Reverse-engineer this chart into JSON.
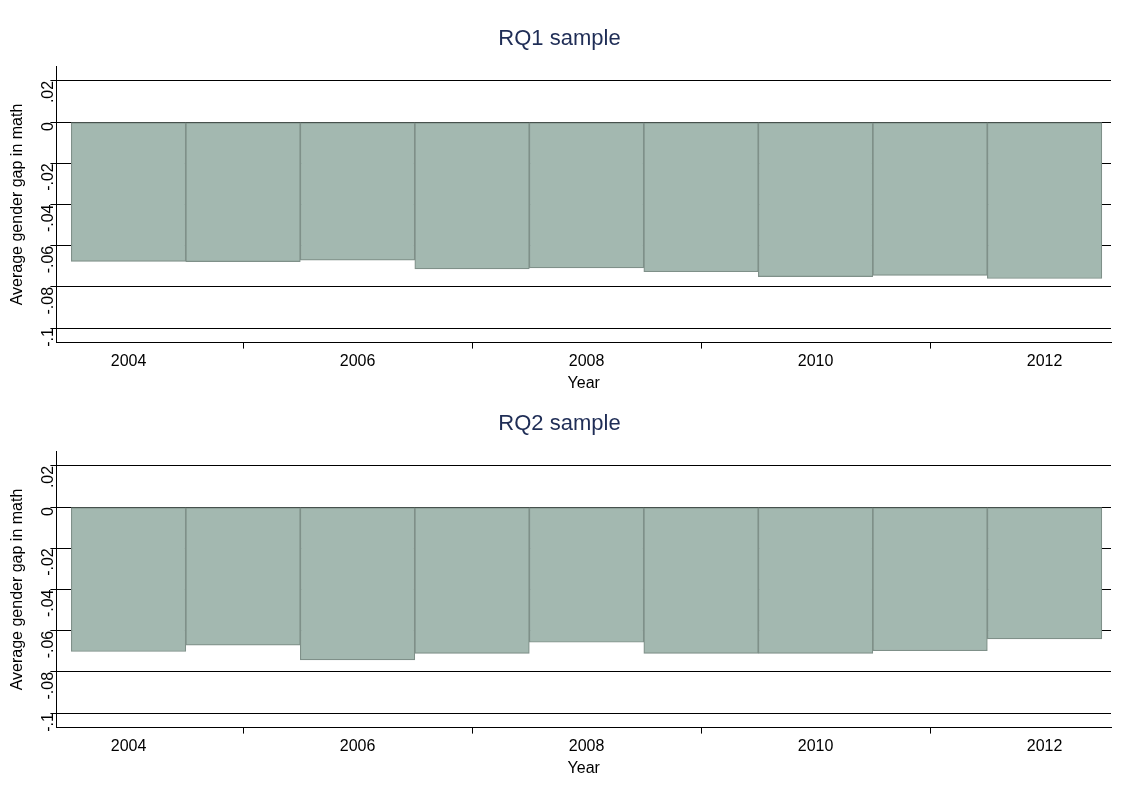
{
  "chart_data": [
    {
      "type": "bar",
      "title": "RQ1 sample",
      "xlabel": "Year",
      "ylabel": "Average gender gap in math",
      "x": [
        2004,
        2005,
        2006,
        2007,
        2008,
        2009,
        2010,
        2011,
        2012
      ],
      "values": [
        -0.0676,
        -0.0677,
        -0.067,
        -0.0712,
        -0.0708,
        -0.0726,
        -0.075,
        -0.0744,
        -0.0759
      ],
      "color": "#a3b8b0",
      "xlim": [
        2003.37,
        2012.58
      ],
      "xticks": [
        2004,
        2006,
        2008,
        2010,
        2012
      ],
      "ylim": [
        -0.107,
        0.027
      ],
      "yticks": [
        {
          "value": -0.1,
          "label": "-.1"
        },
        {
          "value": -0.08,
          "label": "-.08"
        },
        {
          "value": -0.06,
          "label": "-.06"
        },
        {
          "value": -0.04,
          "label": "-.04"
        },
        {
          "value": -0.02,
          "label": "-.02"
        },
        {
          "value": 0,
          "label": "0"
        },
        {
          "value": 0.02,
          "label": ".02"
        }
      ],
      "grid": "y",
      "legend": false
    },
    {
      "type": "bar",
      "title": "RQ2 sample",
      "xlabel": "Year",
      "ylabel": "Average gender gap in math",
      "x": [
        2004,
        2005,
        2006,
        2007,
        2008,
        2009,
        2010,
        2011,
        2012
      ],
      "values": [
        -0.0701,
        -0.067,
        -0.0742,
        -0.071,
        -0.0656,
        -0.071,
        -0.071,
        -0.0697,
        -0.064
      ],
      "color": "#a3b8b0",
      "xlim": [
        2003.37,
        2012.58
      ],
      "xticks": [
        2004,
        2006,
        2008,
        2010,
        2012
      ],
      "ylim": [
        -0.107,
        0.027
      ],
      "yticks": [
        {
          "value": -0.1,
          "label": "-.1"
        },
        {
          "value": -0.08,
          "label": "-.08"
        },
        {
          "value": -0.06,
          "label": "-.06"
        },
        {
          "value": -0.04,
          "label": "-.04"
        },
        {
          "value": -0.02,
          "label": "-.02"
        },
        {
          "value": 0,
          "label": "0"
        },
        {
          "value": 0.02,
          "label": ".02"
        }
      ],
      "grid": "y",
      "legend": false
    }
  ]
}
